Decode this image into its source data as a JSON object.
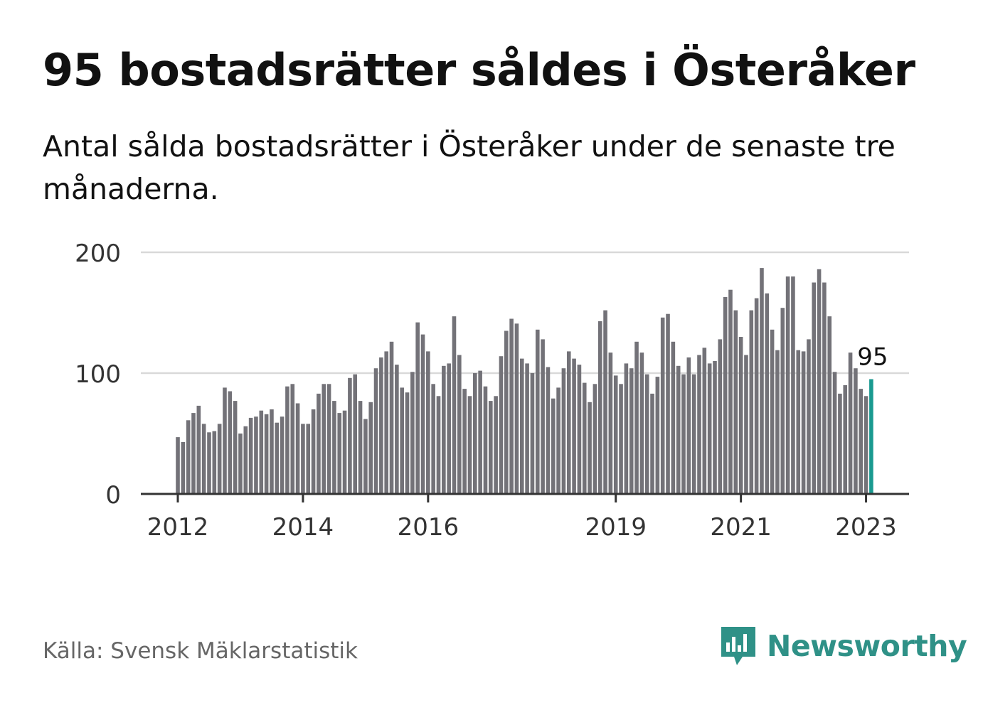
{
  "title": "95 bostadsrätter såldes i Österåker",
  "subtitle": "Antal sålda bostadsrätter i Österåker under de senaste tre månaderna.",
  "source": "Källa: Svensk Mäklarstatistik",
  "brand": {
    "name": "Newsworthy",
    "color": "#2f9187",
    "icon": "newsworthy-logo-icon"
  },
  "colors": {
    "bars": "#737278",
    "highlight": "#1a9a90",
    "grid": "#d9d9d9",
    "axis": "#333333"
  },
  "chart_data": {
    "type": "bar",
    "ylim": [
      0,
      200
    ],
    "yticks": [
      0,
      100,
      200
    ],
    "grid": true,
    "x_start": "2012-01",
    "xtick_labels": [
      {
        "label": "2012",
        "month_index": 0
      },
      {
        "label": "2014",
        "month_index": 24
      },
      {
        "label": "2016",
        "month_index": 48
      },
      {
        "label": "2019",
        "month_index": 84
      },
      {
        "label": "2021",
        "month_index": 108
      },
      {
        "label": "2023",
        "month_index": 132
      }
    ],
    "highlight_label": "95",
    "values": [
      47,
      43,
      61,
      67,
      73,
      58,
      51,
      52,
      58,
      88,
      85,
      77,
      50,
      56,
      63,
      64,
      69,
      66,
      70,
      59,
      64,
      89,
      91,
      75,
      58,
      58,
      70,
      83,
      91,
      91,
      77,
      67,
      69,
      96,
      99,
      77,
      62,
      76,
      104,
      113,
      118,
      126,
      107,
      88,
      84,
      101,
      142,
      132,
      118,
      91,
      81,
      106,
      108,
      147,
      115,
      87,
      81,
      100,
      102,
      89,
      77,
      81,
      114,
      135,
      145,
      141,
      112,
      108,
      100,
      136,
      128,
      105,
      79,
      88,
      104,
      118,
      112,
      107,
      92,
      76,
      91,
      143,
      152,
      117,
      98,
      91,
      108,
      104,
      126,
      117,
      99,
      83,
      97,
      146,
      149,
      126,
      106,
      99,
      113,
      99,
      115,
      121,
      108,
      110,
      128,
      163,
      169,
      152,
      130,
      115,
      152,
      162,
      187,
      166,
      136,
      119,
      154,
      180,
      180,
      119,
      118,
      128,
      175,
      186,
      175,
      147,
      101,
      83,
      90,
      117,
      104,
      87,
      81,
      95
    ]
  }
}
